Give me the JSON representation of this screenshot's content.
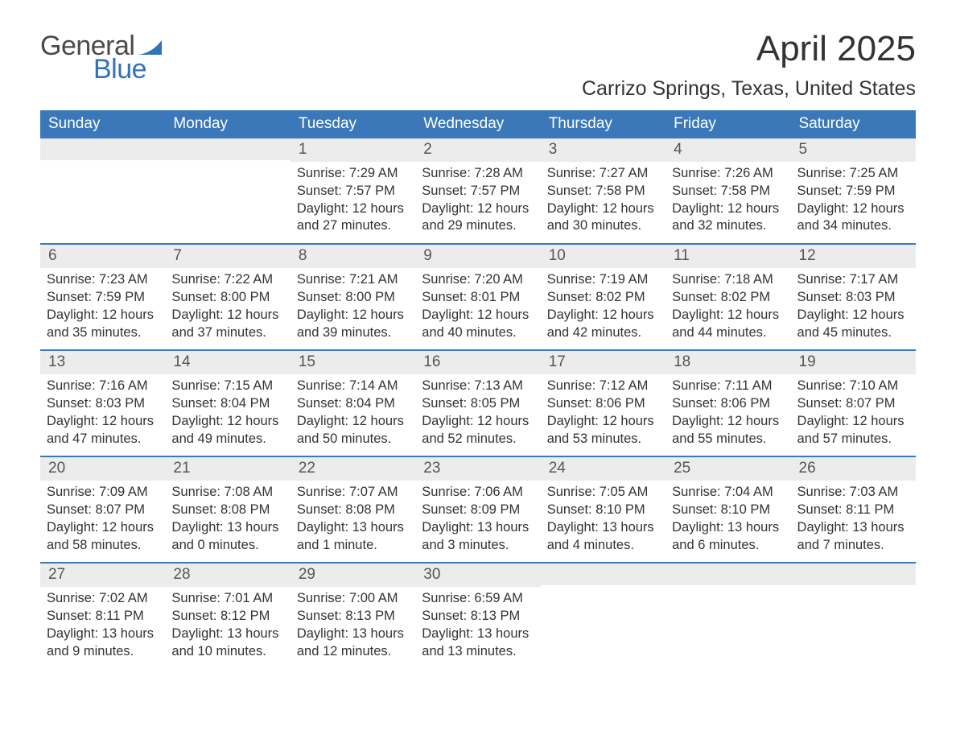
{
  "brand": {
    "part1": "General",
    "part2": "Blue",
    "sail_color": "#2f73b9",
    "text1_color": "#4a4a4a"
  },
  "title": "April 2025",
  "location": "Carrizo Springs, Texas, United States",
  "colors": {
    "header_bg": "#3a78b9",
    "header_text": "#ffffff",
    "daynum_bg": "#ececec",
    "week_border": "#3a78b9",
    "body_text": "#333333"
  },
  "dow": [
    "Sunday",
    "Monday",
    "Tuesday",
    "Wednesday",
    "Thursday",
    "Friday",
    "Saturday"
  ],
  "weeks": [
    [
      {
        "n": "",
        "sun": "",
        "set": "",
        "day": ""
      },
      {
        "n": "",
        "sun": "",
        "set": "",
        "day": ""
      },
      {
        "n": "1",
        "sun": "Sunrise: 7:29 AM",
        "set": "Sunset: 7:57 PM",
        "day": "Daylight: 12 hours and 27 minutes."
      },
      {
        "n": "2",
        "sun": "Sunrise: 7:28 AM",
        "set": "Sunset: 7:57 PM",
        "day": "Daylight: 12 hours and 29 minutes."
      },
      {
        "n": "3",
        "sun": "Sunrise: 7:27 AM",
        "set": "Sunset: 7:58 PM",
        "day": "Daylight: 12 hours and 30 minutes."
      },
      {
        "n": "4",
        "sun": "Sunrise: 7:26 AM",
        "set": "Sunset: 7:58 PM",
        "day": "Daylight: 12 hours and 32 minutes."
      },
      {
        "n": "5",
        "sun": "Sunrise: 7:25 AM",
        "set": "Sunset: 7:59 PM",
        "day": "Daylight: 12 hours and 34 minutes."
      }
    ],
    [
      {
        "n": "6",
        "sun": "Sunrise: 7:23 AM",
        "set": "Sunset: 7:59 PM",
        "day": "Daylight: 12 hours and 35 minutes."
      },
      {
        "n": "7",
        "sun": "Sunrise: 7:22 AM",
        "set": "Sunset: 8:00 PM",
        "day": "Daylight: 12 hours and 37 minutes."
      },
      {
        "n": "8",
        "sun": "Sunrise: 7:21 AM",
        "set": "Sunset: 8:00 PM",
        "day": "Daylight: 12 hours and 39 minutes."
      },
      {
        "n": "9",
        "sun": "Sunrise: 7:20 AM",
        "set": "Sunset: 8:01 PM",
        "day": "Daylight: 12 hours and 40 minutes."
      },
      {
        "n": "10",
        "sun": "Sunrise: 7:19 AM",
        "set": "Sunset: 8:02 PM",
        "day": "Daylight: 12 hours and 42 minutes."
      },
      {
        "n": "11",
        "sun": "Sunrise: 7:18 AM",
        "set": "Sunset: 8:02 PM",
        "day": "Daylight: 12 hours and 44 minutes."
      },
      {
        "n": "12",
        "sun": "Sunrise: 7:17 AM",
        "set": "Sunset: 8:03 PM",
        "day": "Daylight: 12 hours and 45 minutes."
      }
    ],
    [
      {
        "n": "13",
        "sun": "Sunrise: 7:16 AM",
        "set": "Sunset: 8:03 PM",
        "day": "Daylight: 12 hours and 47 minutes."
      },
      {
        "n": "14",
        "sun": "Sunrise: 7:15 AM",
        "set": "Sunset: 8:04 PM",
        "day": "Daylight: 12 hours and 49 minutes."
      },
      {
        "n": "15",
        "sun": "Sunrise: 7:14 AM",
        "set": "Sunset: 8:04 PM",
        "day": "Daylight: 12 hours and 50 minutes."
      },
      {
        "n": "16",
        "sun": "Sunrise: 7:13 AM",
        "set": "Sunset: 8:05 PM",
        "day": "Daylight: 12 hours and 52 minutes."
      },
      {
        "n": "17",
        "sun": "Sunrise: 7:12 AM",
        "set": "Sunset: 8:06 PM",
        "day": "Daylight: 12 hours and 53 minutes."
      },
      {
        "n": "18",
        "sun": "Sunrise: 7:11 AM",
        "set": "Sunset: 8:06 PM",
        "day": "Daylight: 12 hours and 55 minutes."
      },
      {
        "n": "19",
        "sun": "Sunrise: 7:10 AM",
        "set": "Sunset: 8:07 PM",
        "day": "Daylight: 12 hours and 57 minutes."
      }
    ],
    [
      {
        "n": "20",
        "sun": "Sunrise: 7:09 AM",
        "set": "Sunset: 8:07 PM",
        "day": "Daylight: 12 hours and 58 minutes."
      },
      {
        "n": "21",
        "sun": "Sunrise: 7:08 AM",
        "set": "Sunset: 8:08 PM",
        "day": "Daylight: 13 hours and 0 minutes."
      },
      {
        "n": "22",
        "sun": "Sunrise: 7:07 AM",
        "set": "Sunset: 8:08 PM",
        "day": "Daylight: 13 hours and 1 minute."
      },
      {
        "n": "23",
        "sun": "Sunrise: 7:06 AM",
        "set": "Sunset: 8:09 PM",
        "day": "Daylight: 13 hours and 3 minutes."
      },
      {
        "n": "24",
        "sun": "Sunrise: 7:05 AM",
        "set": "Sunset: 8:10 PM",
        "day": "Daylight: 13 hours and 4 minutes."
      },
      {
        "n": "25",
        "sun": "Sunrise: 7:04 AM",
        "set": "Sunset: 8:10 PM",
        "day": "Daylight: 13 hours and 6 minutes."
      },
      {
        "n": "26",
        "sun": "Sunrise: 7:03 AM",
        "set": "Sunset: 8:11 PM",
        "day": "Daylight: 13 hours and 7 minutes."
      }
    ],
    [
      {
        "n": "27",
        "sun": "Sunrise: 7:02 AM",
        "set": "Sunset: 8:11 PM",
        "day": "Daylight: 13 hours and 9 minutes."
      },
      {
        "n": "28",
        "sun": "Sunrise: 7:01 AM",
        "set": "Sunset: 8:12 PM",
        "day": "Daylight: 13 hours and 10 minutes."
      },
      {
        "n": "29",
        "sun": "Sunrise: 7:00 AM",
        "set": "Sunset: 8:13 PM",
        "day": "Daylight: 13 hours and 12 minutes."
      },
      {
        "n": "30",
        "sun": "Sunrise: 6:59 AM",
        "set": "Sunset: 8:13 PM",
        "day": "Daylight: 13 hours and 13 minutes."
      },
      {
        "n": "",
        "sun": "",
        "set": "",
        "day": ""
      },
      {
        "n": "",
        "sun": "",
        "set": "",
        "day": ""
      },
      {
        "n": "",
        "sun": "",
        "set": "",
        "day": ""
      }
    ]
  ]
}
